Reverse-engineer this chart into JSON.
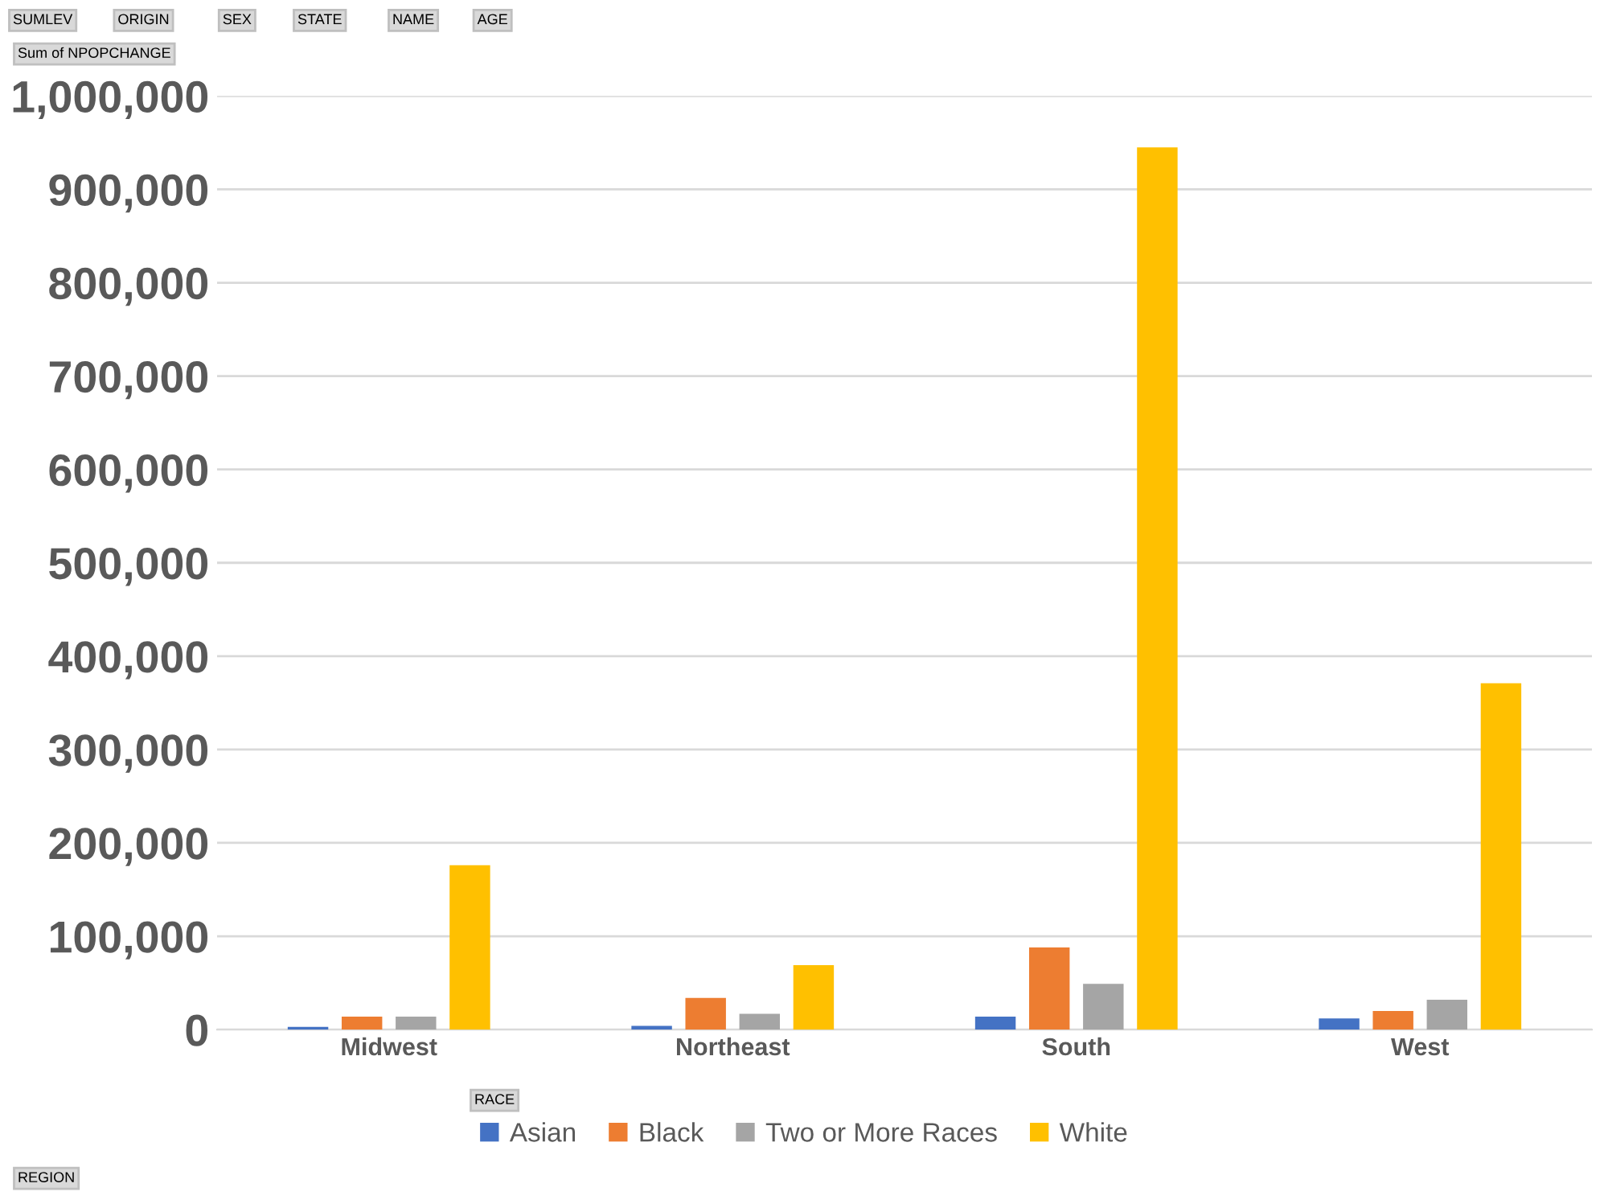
{
  "chart_data": {
    "type": "bar",
    "categories": [
      "Midwest",
      "Northeast",
      "South",
      "West"
    ],
    "series": [
      {
        "name": "Asian",
        "color": "#4472c4",
        "values": [
          3000,
          4000,
          14000,
          12000
        ]
      },
      {
        "name": "Black",
        "color": "#ed7d31",
        "values": [
          14000,
          34000,
          88000,
          20000
        ]
      },
      {
        "name": "Two or More Races",
        "color": "#a5a5a5",
        "values": [
          14000,
          17000,
          49000,
          32000
        ]
      },
      {
        "name": "White",
        "color": "#ffc000",
        "values": [
          176000,
          69000,
          945000,
          371000
        ]
      }
    ],
    "ylim": [
      0,
      1000000
    ],
    "yticks": [
      {
        "value": 0,
        "label": "0"
      },
      {
        "value": 100000,
        "label": "100,000"
      },
      {
        "value": 200000,
        "label": "200,000"
      },
      {
        "value": 300000,
        "label": "300,000"
      },
      {
        "value": 400000,
        "label": "400,000"
      },
      {
        "value": 500000,
        "label": "500,000"
      },
      {
        "value": 600000,
        "label": "600,000"
      },
      {
        "value": 700000,
        "label": "700,000"
      },
      {
        "value": 800000,
        "label": "800,000"
      },
      {
        "value": 900000,
        "label": "900,000"
      },
      {
        "value": 1000000,
        "label": "1,000,000"
      }
    ],
    "grid": "y",
    "legend": "bottom",
    "legend_title": "RACE",
    "annotations": [
      "SUMLEV",
      "ORIGIN",
      "SEX",
      "STATE",
      "NAME",
      "AGE",
      "Sum of NPOPCHANGE",
      "REGION"
    ]
  }
}
